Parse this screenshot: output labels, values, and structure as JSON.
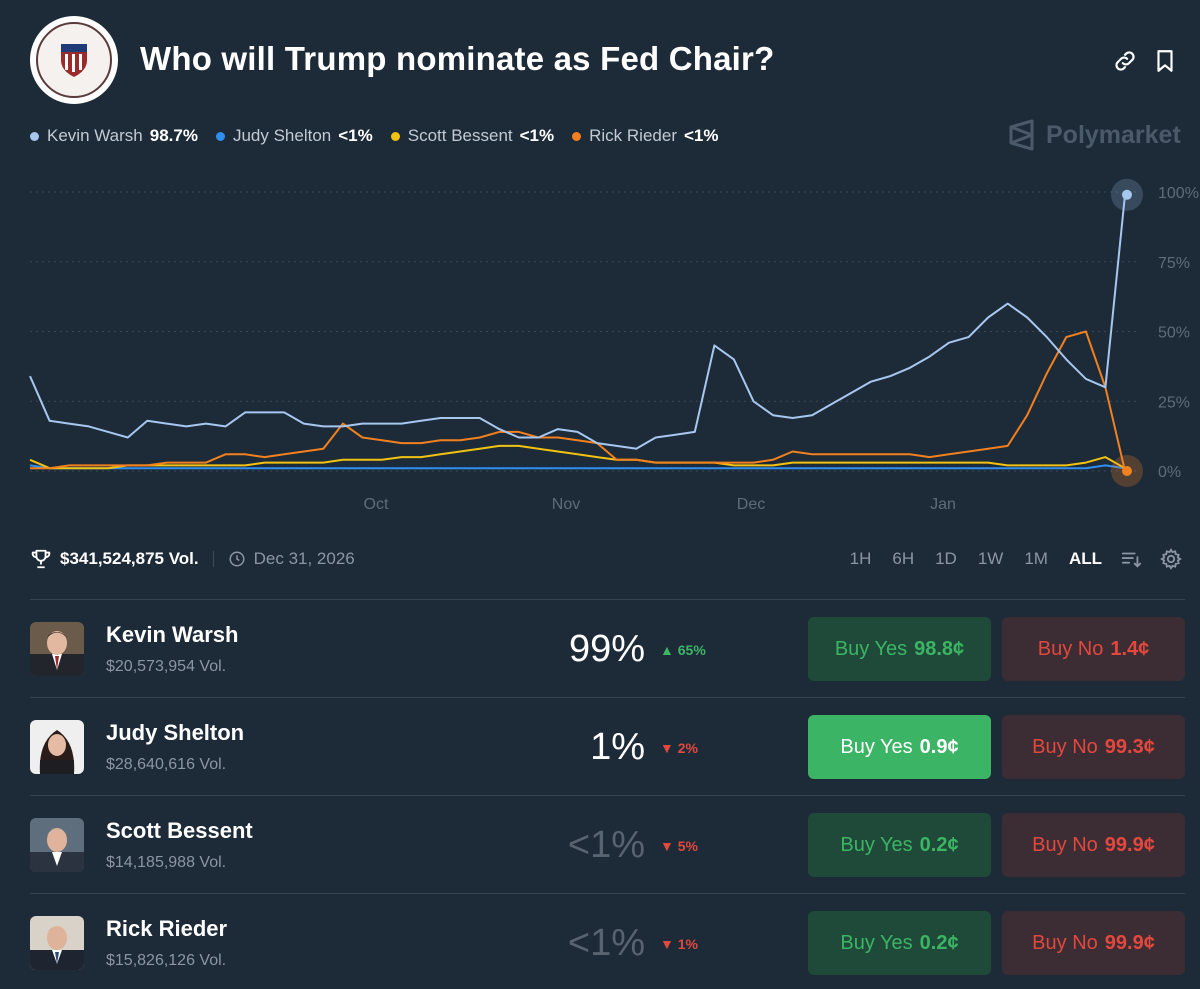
{
  "header": {
    "title": "Who will Trump nominate as Fed Chair?"
  },
  "legend": [
    {
      "name": "Kevin Warsh",
      "value": "98.7%",
      "color": "#a7c7ef"
    },
    {
      "name": "Judy Shelton",
      "value": "<1%",
      "color": "#2f8ef0"
    },
    {
      "name": "Scott Bessent",
      "value": "<1%",
      "color": "#f2c211"
    },
    {
      "name": "Rick Rieder",
      "value": "<1%",
      "color": "#f2801e"
    }
  ],
  "brand": {
    "name": "Polymarket"
  },
  "chart_data": {
    "type": "line",
    "x_labels": [
      "Oct",
      "Nov",
      "Dec",
      "Jan"
    ],
    "y_ticks": [
      "100%",
      "75%",
      "50%",
      "25%",
      "0%"
    ],
    "ylim": [
      0,
      100
    ],
    "grid": true,
    "legend_position": "top-left",
    "series": [
      {
        "name": "Kevin Warsh",
        "color": "#a7c7ef",
        "values": [
          34,
          18,
          17,
          16,
          14,
          12,
          18,
          17,
          16,
          17,
          16,
          21,
          21,
          21,
          17,
          16,
          16,
          17,
          17,
          17,
          18,
          19,
          19,
          19,
          15,
          12,
          12,
          15,
          14,
          10,
          9,
          8,
          12,
          13,
          14,
          45,
          40,
          25,
          20,
          19,
          20,
          24,
          28,
          32,
          34,
          37,
          41,
          46,
          48,
          55,
          60,
          55,
          48,
          40,
          33,
          30,
          99
        ]
      },
      {
        "name": "Judy Shelton",
        "color": "#2f8ef0",
        "values": [
          2,
          1,
          1,
          1,
          1,
          1,
          1,
          1,
          1,
          1,
          1,
          1,
          1,
          1,
          1,
          1,
          1,
          1,
          1,
          1,
          1,
          1,
          1,
          1,
          1,
          1,
          1,
          1,
          1,
          1,
          1,
          1,
          1,
          1,
          1,
          1,
          1,
          1,
          1,
          1,
          1,
          1,
          1,
          1,
          1,
          1,
          1,
          1,
          1,
          1,
          1,
          1,
          1,
          1,
          1,
          2,
          1
        ]
      },
      {
        "name": "Scott Bessent",
        "color": "#f2c211",
        "values": [
          4,
          1,
          1,
          1,
          1,
          2,
          2,
          2,
          2,
          2,
          2,
          2,
          3,
          3,
          3,
          3,
          4,
          4,
          4,
          5,
          5,
          6,
          7,
          8,
          9,
          9,
          8,
          7,
          6,
          5,
          4,
          4,
          3,
          3,
          3,
          3,
          2,
          2,
          2,
          3,
          3,
          3,
          3,
          3,
          3,
          3,
          3,
          3,
          3,
          3,
          2,
          2,
          2,
          2,
          3,
          5,
          1
        ]
      },
      {
        "name": "Rick Rieder",
        "color": "#f2801e",
        "values": [
          1,
          1,
          2,
          2,
          2,
          2,
          2,
          3,
          3,
          3,
          6,
          6,
          5,
          6,
          7,
          8,
          17,
          12,
          11,
          10,
          10,
          11,
          11,
          12,
          14,
          14,
          12,
          12,
          11,
          10,
          4,
          4,
          3,
          3,
          3,
          3,
          3,
          3,
          4,
          7,
          6,
          6,
          6,
          6,
          6,
          6,
          5,
          6,
          7,
          8,
          9,
          20,
          35,
          48,
          50,
          30,
          0
        ]
      }
    ]
  },
  "stats": {
    "volume": "$341,524,875 Vol.",
    "end_date": "Dec 31, 2026"
  },
  "ranges": [
    "1H",
    "6H",
    "1D",
    "1W",
    "1M",
    "ALL"
  ],
  "active_range": "ALL",
  "rows": [
    {
      "name": "Kevin Warsh",
      "volume": "$20,573,954 Vol.",
      "percent": "99%",
      "change": "65%",
      "yes_label": "Buy Yes",
      "yes_price": "98.8¢",
      "no_label": "Buy No",
      "no_price": "1.4¢"
    },
    {
      "name": "Judy Shelton",
      "volume": "$28,640,616 Vol.",
      "percent": "1%",
      "change": "2%",
      "yes_label": "Buy Yes",
      "yes_price": "0.9¢",
      "no_label": "Buy No",
      "no_price": "99.3¢"
    },
    {
      "name": "Scott Bessent",
      "volume": "$14,185,988 Vol.",
      "percent": "<1%",
      "change": "5%",
      "yes_label": "Buy Yes",
      "yes_price": "0.2¢",
      "no_label": "Buy No",
      "no_price": "99.9¢"
    },
    {
      "name": "Rick Rieder",
      "volume": "$15,826,126 Vol.",
      "percent": "<1%",
      "change": "1%",
      "yes_label": "Buy Yes",
      "yes_price": "0.2¢",
      "no_label": "Buy No",
      "no_price": "99.9¢"
    }
  ]
}
